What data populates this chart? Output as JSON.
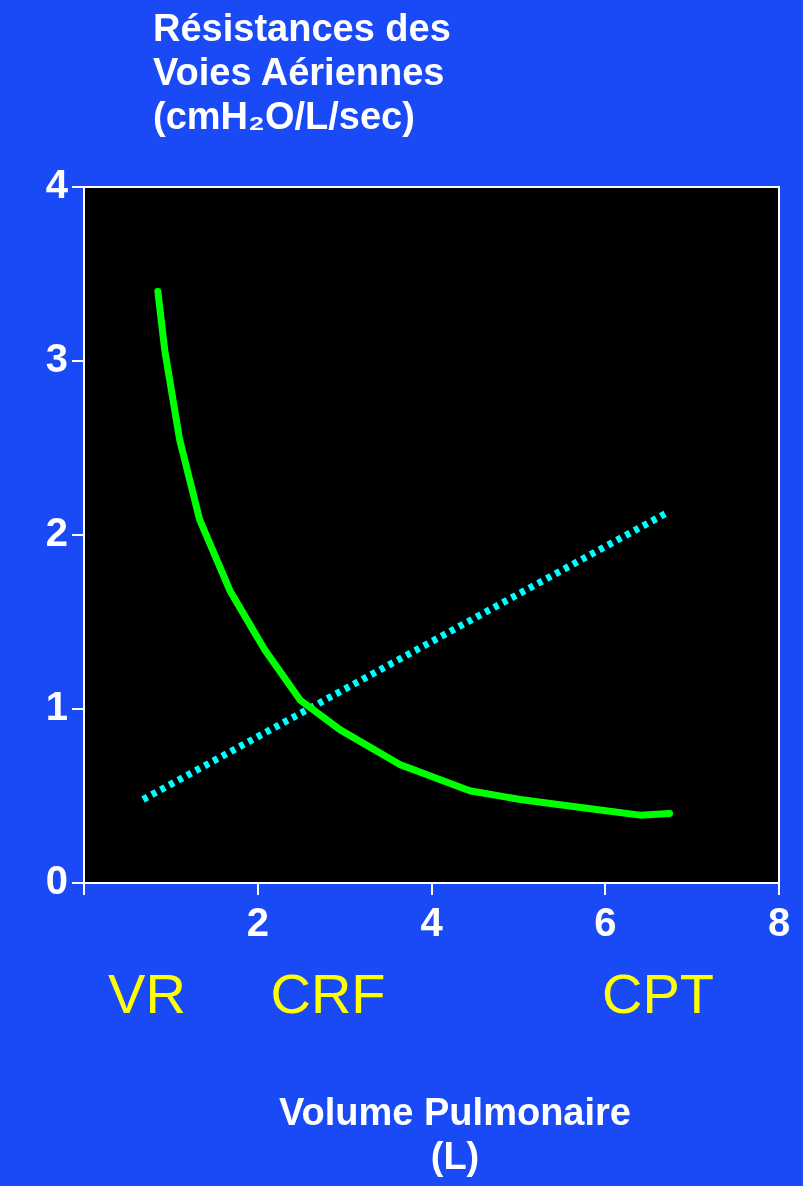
{
  "chart_data": {
    "type": "line",
    "ylabel": "Résistances des Voies Aériennes (cmH₂O/L/sec)",
    "xlabel": "Volume Pulmonaire (L)",
    "series": [
      {
        "color": "#00ff00",
        "line_style": "solid",
        "x": [
          0.85,
          0.93,
          1.1,
          1.33,
          1.68,
          2.08,
          2.49,
          2.95,
          3.64,
          4.44,
          5.02,
          5.94,
          6.4,
          6.74
        ],
        "values": [
          3.4,
          3.06,
          2.55,
          2.09,
          1.68,
          1.34,
          1.05,
          0.88,
          0.68,
          0.53,
          0.48,
          0.42,
          0.39,
          0.4
        ]
      },
      {
        "color": "#00ffff",
        "line_style": "dotted",
        "x": [
          0.68,
          6.72
        ],
        "values": [
          0.48,
          2.13
        ]
      }
    ],
    "xlim": [
      0,
      8
    ],
    "xticks": [
      {
        "value": 0,
        "label": null
      },
      2,
      4,
      6,
      8
    ],
    "ylim": [
      0,
      4
    ],
    "yticks": [
      0,
      1,
      2,
      3,
      4
    ],
    "annotations": [
      "VR",
      "CRF",
      "CPT"
    ],
    "legend": false,
    "marker": "none"
  }
}
